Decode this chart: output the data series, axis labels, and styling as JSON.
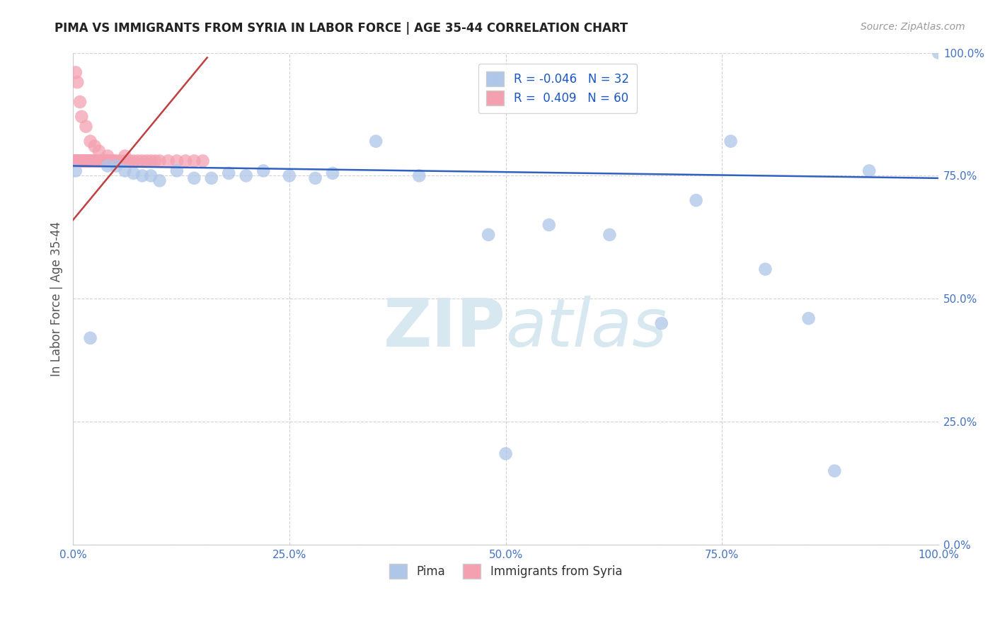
{
  "title": "PIMA VS IMMIGRANTS FROM SYRIA IN LABOR FORCE | AGE 35-44 CORRELATION CHART",
  "source": "Source: ZipAtlas.com",
  "ylabel": "In Labor Force | Age 35-44",
  "xlim": [
    0.0,
    1.0
  ],
  "ylim": [
    0.0,
    1.0
  ],
  "xticks": [
    0.0,
    0.25,
    0.5,
    0.75,
    1.0
  ],
  "yticks": [
    0.0,
    0.25,
    0.5,
    0.75,
    1.0
  ],
  "xticklabels": [
    "0.0%",
    "25.0%",
    "50.0%",
    "75.0%",
    "100.0%"
  ],
  "yticklabels": [
    "0.0%",
    "25.0%",
    "50.0%",
    "75.0%",
    "100.0%"
  ],
  "blue_R": -0.046,
  "blue_N": 32,
  "pink_R": 0.409,
  "pink_N": 60,
  "blue_color": "#aec6e8",
  "pink_color": "#f4a0b0",
  "blue_line_color": "#3060c0",
  "pink_line_color": "#c04040",
  "watermark_color": "#d8e8f0",
  "background_color": "#ffffff",
  "grid_color": "#cccccc",
  "tick_color": "#4472c4",
  "legend_label_color": "#1a56c4",
  "blue_legend_label": "R = -0.046   N = 32",
  "pink_legend_label": "R =  0.409   N = 60",
  "bottom_legend_blue": "Pima",
  "bottom_legend_pink": "Immigrants from Syria",
  "blue_x": [
    0.003,
    0.05,
    0.07,
    0.09,
    0.12,
    0.14,
    0.16,
    0.2,
    0.22,
    0.25,
    0.28,
    0.3,
    0.35,
    0.4,
    0.48,
    0.5,
    0.55,
    0.62,
    0.68,
    0.72,
    0.76,
    0.8,
    0.85,
    0.88,
    0.92,
    1.0,
    0.06,
    0.1,
    0.18,
    0.08,
    0.04,
    0.02
  ],
  "blue_y": [
    0.76,
    0.77,
    0.755,
    0.75,
    0.76,
    0.745,
    0.745,
    0.75,
    0.76,
    0.75,
    0.745,
    0.755,
    0.82,
    0.75,
    0.63,
    0.185,
    0.65,
    0.63,
    0.45,
    0.7,
    0.82,
    0.56,
    0.46,
    0.15,
    0.76,
    1.0,
    0.76,
    0.74,
    0.755,
    0.75,
    0.77,
    0.42
  ],
  "pink_x": [
    0.001,
    0.002,
    0.003,
    0.004,
    0.005,
    0.006,
    0.007,
    0.008,
    0.009,
    0.01,
    0.011,
    0.012,
    0.013,
    0.014,
    0.015,
    0.016,
    0.017,
    0.018,
    0.019,
    0.02,
    0.022,
    0.024,
    0.026,
    0.028,
    0.03,
    0.032,
    0.034,
    0.036,
    0.038,
    0.04,
    0.042,
    0.044,
    0.046,
    0.048,
    0.05,
    0.055,
    0.06,
    0.065,
    0.07,
    0.075,
    0.08,
    0.085,
    0.09,
    0.095,
    0.1,
    0.11,
    0.12,
    0.13,
    0.14,
    0.15,
    0.003,
    0.005,
    0.008,
    0.01,
    0.015,
    0.02,
    0.025,
    0.03,
    0.04,
    0.06
  ],
  "pink_y": [
    0.78,
    0.78,
    0.78,
    0.78,
    0.78,
    0.78,
    0.78,
    0.78,
    0.78,
    0.78,
    0.78,
    0.78,
    0.78,
    0.78,
    0.78,
    0.78,
    0.78,
    0.78,
    0.78,
    0.78,
    0.78,
    0.78,
    0.78,
    0.78,
    0.78,
    0.78,
    0.78,
    0.78,
    0.78,
    0.78,
    0.78,
    0.78,
    0.78,
    0.78,
    0.78,
    0.78,
    0.78,
    0.78,
    0.78,
    0.78,
    0.78,
    0.78,
    0.78,
    0.78,
    0.78,
    0.78,
    0.78,
    0.78,
    0.78,
    0.78,
    0.96,
    0.94,
    0.9,
    0.87,
    0.85,
    0.82,
    0.81,
    0.8,
    0.79,
    0.79
  ],
  "blue_line_x": [
    0.0,
    1.0
  ],
  "blue_line_y": [
    0.77,
    0.745
  ],
  "pink_line_x": [
    0.0,
    0.155
  ],
  "pink_line_y": [
    0.66,
    0.99
  ]
}
